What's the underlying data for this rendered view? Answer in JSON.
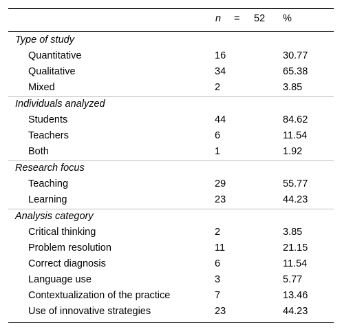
{
  "header": {
    "n_label": "n",
    "equals": "=",
    "n_value": "52",
    "percent_label": "%"
  },
  "groups": [
    {
      "title": "Type of study",
      "rows": [
        {
          "label": "Quantitative",
          "n": "16",
          "pct": "30.77"
        },
        {
          "label": "Qualitative",
          "n": "34",
          "pct": "65.38"
        },
        {
          "label": "Mixed",
          "n": "2",
          "pct": "3.85"
        }
      ]
    },
    {
      "title": "Individuals analyzed",
      "rows": [
        {
          "label": "Students",
          "n": "44",
          "pct": "84.62"
        },
        {
          "label": "Teachers",
          "n": "6",
          "pct": "11.54"
        },
        {
          "label": "Both",
          "n": "1",
          "pct": "1.92"
        }
      ]
    },
    {
      "title": "Research focus",
      "rows": [
        {
          "label": "Teaching",
          "n": "29",
          "pct": "55.77"
        },
        {
          "label": "Learning",
          "n": "23",
          "pct": "44.23"
        }
      ]
    },
    {
      "title": "Analysis category",
      "rows": [
        {
          "label": "Critical thinking",
          "n": "2",
          "pct": "3.85"
        },
        {
          "label": "Problem resolution",
          "n": "11",
          "pct": "21.15"
        },
        {
          "label": "Correct diagnosis",
          "n": "6",
          "pct": "11.54"
        },
        {
          "label": "Language use",
          "n": "3",
          "pct": "5.77"
        },
        {
          "label": "Contextualization of the practice",
          "n": "7",
          "pct": "13.46"
        },
        {
          "label": "Use of innovative strategies",
          "n": "23",
          "pct": "44.23"
        }
      ]
    }
  ]
}
